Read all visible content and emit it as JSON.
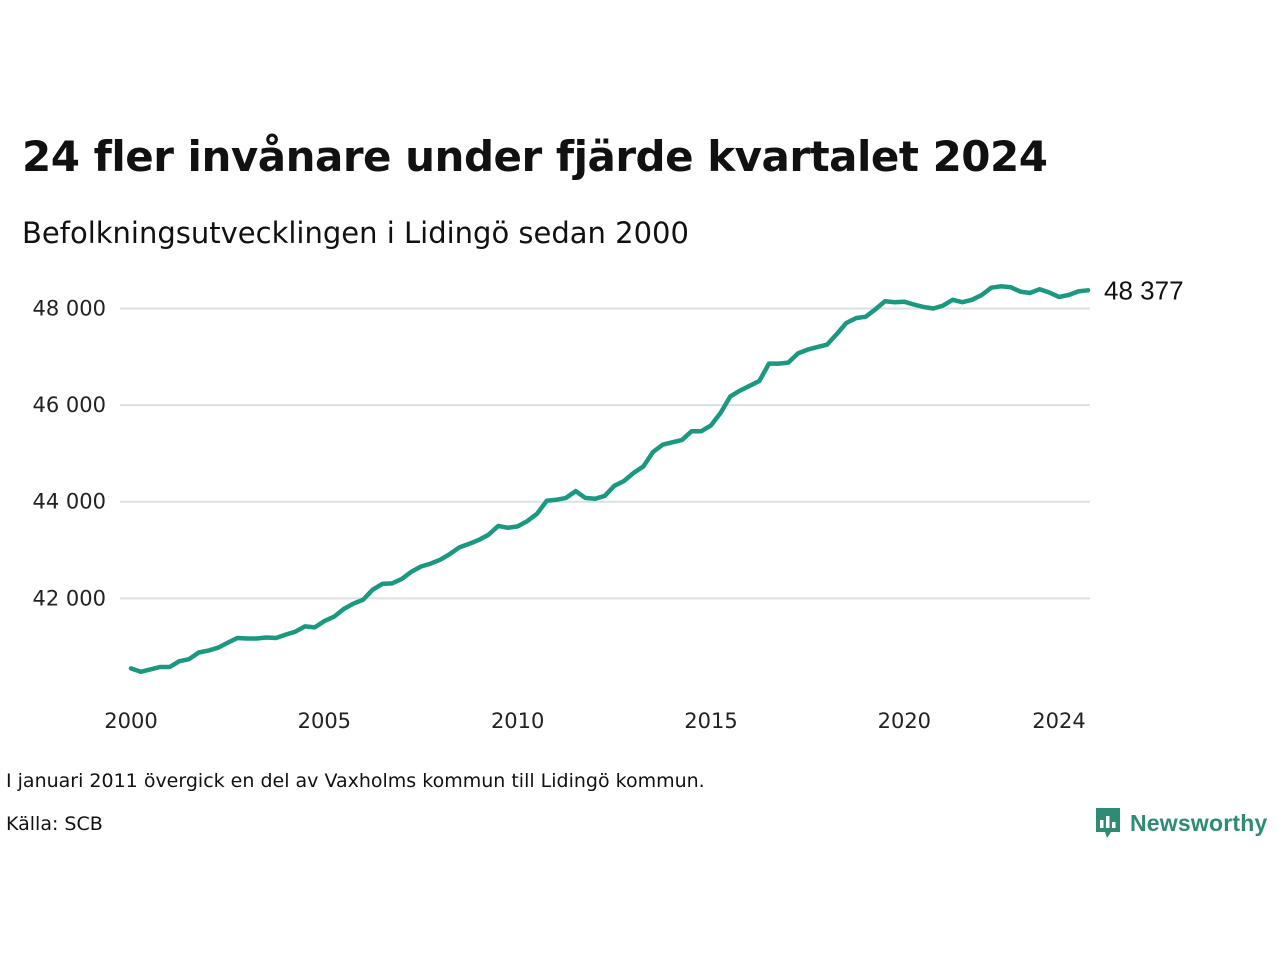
{
  "title": "24 fler invånare under fjärde kvartalet 2024",
  "subtitle": "Befolkningsutvecklingen i Lidingö sedan 2000",
  "note": "I januari 2011 övergick en del av Vaxholms kommun till Lidingö kommun.",
  "source": "Källa: SCB",
  "brand": {
    "name": "Newsworthy",
    "color": "#2e8b74",
    "icon": "bar-chart-speech-icon"
  },
  "end_label": "48 377",
  "chart_data": {
    "type": "line",
    "title": "",
    "xlabel": "",
    "ylabel": "",
    "line_color": "#1a9880",
    "grid": true,
    "ylim": [
      40000,
      48900
    ],
    "xlim": [
      2000.0,
      2024.75
    ],
    "x_ticks": [
      {
        "value": 2000,
        "label": "2000"
      },
      {
        "value": 2005,
        "label": "2005"
      },
      {
        "value": 2010,
        "label": "2010"
      },
      {
        "value": 2015,
        "label": "2015"
      },
      {
        "value": 2020,
        "label": "2020"
      },
      {
        "value": 2024,
        "label": "2024"
      }
    ],
    "y_ticks": [
      {
        "value": 42000,
        "label": "42 000"
      },
      {
        "value": 44000,
        "label": "44 000"
      },
      {
        "value": 46000,
        "label": "46 000"
      },
      {
        "value": 48000,
        "label": "48 000"
      }
    ],
    "series": [
      {
        "start_year": 2000,
        "values": [
          40550,
          40480,
          40530,
          40580,
          40580,
          40700,
          40740,
          40880,
          40920,
          40980,
          41080,
          41180,
          41170,
          41170,
          41190,
          41180,
          41250,
          41310,
          41420,
          41400,
          41530,
          41620,
          41780,
          41890,
          41970,
          42180,
          42300,
          42310,
          42400,
          42550,
          42660,
          42720,
          42800,
          42920,
          43060,
          43130,
          43210,
          43320,
          43500,
          43460,
          43490,
          43600,
          43750,
          44020,
          44040,
          44080,
          44220,
          44080,
          44060,
          44120,
          44330,
          44430,
          44600,
          44730,
          45030,
          45180,
          45230,
          45280,
          45460,
          45460,
          45580,
          45840,
          46180,
          46300,
          46400,
          46500,
          46860,
          46860,
          46880,
          47070,
          47150,
          47200,
          47250,
          47470,
          47700,
          47800,
          47830,
          47980,
          48150,
          48130,
          48140,
          48080,
          48030,
          48000,
          48060,
          48180,
          48130,
          48180,
          48280,
          48430,
          48460,
          48440,
          48350,
          48320,
          48400,
          48330,
          48240,
          48280,
          48353,
          48377
        ]
      }
    ]
  }
}
